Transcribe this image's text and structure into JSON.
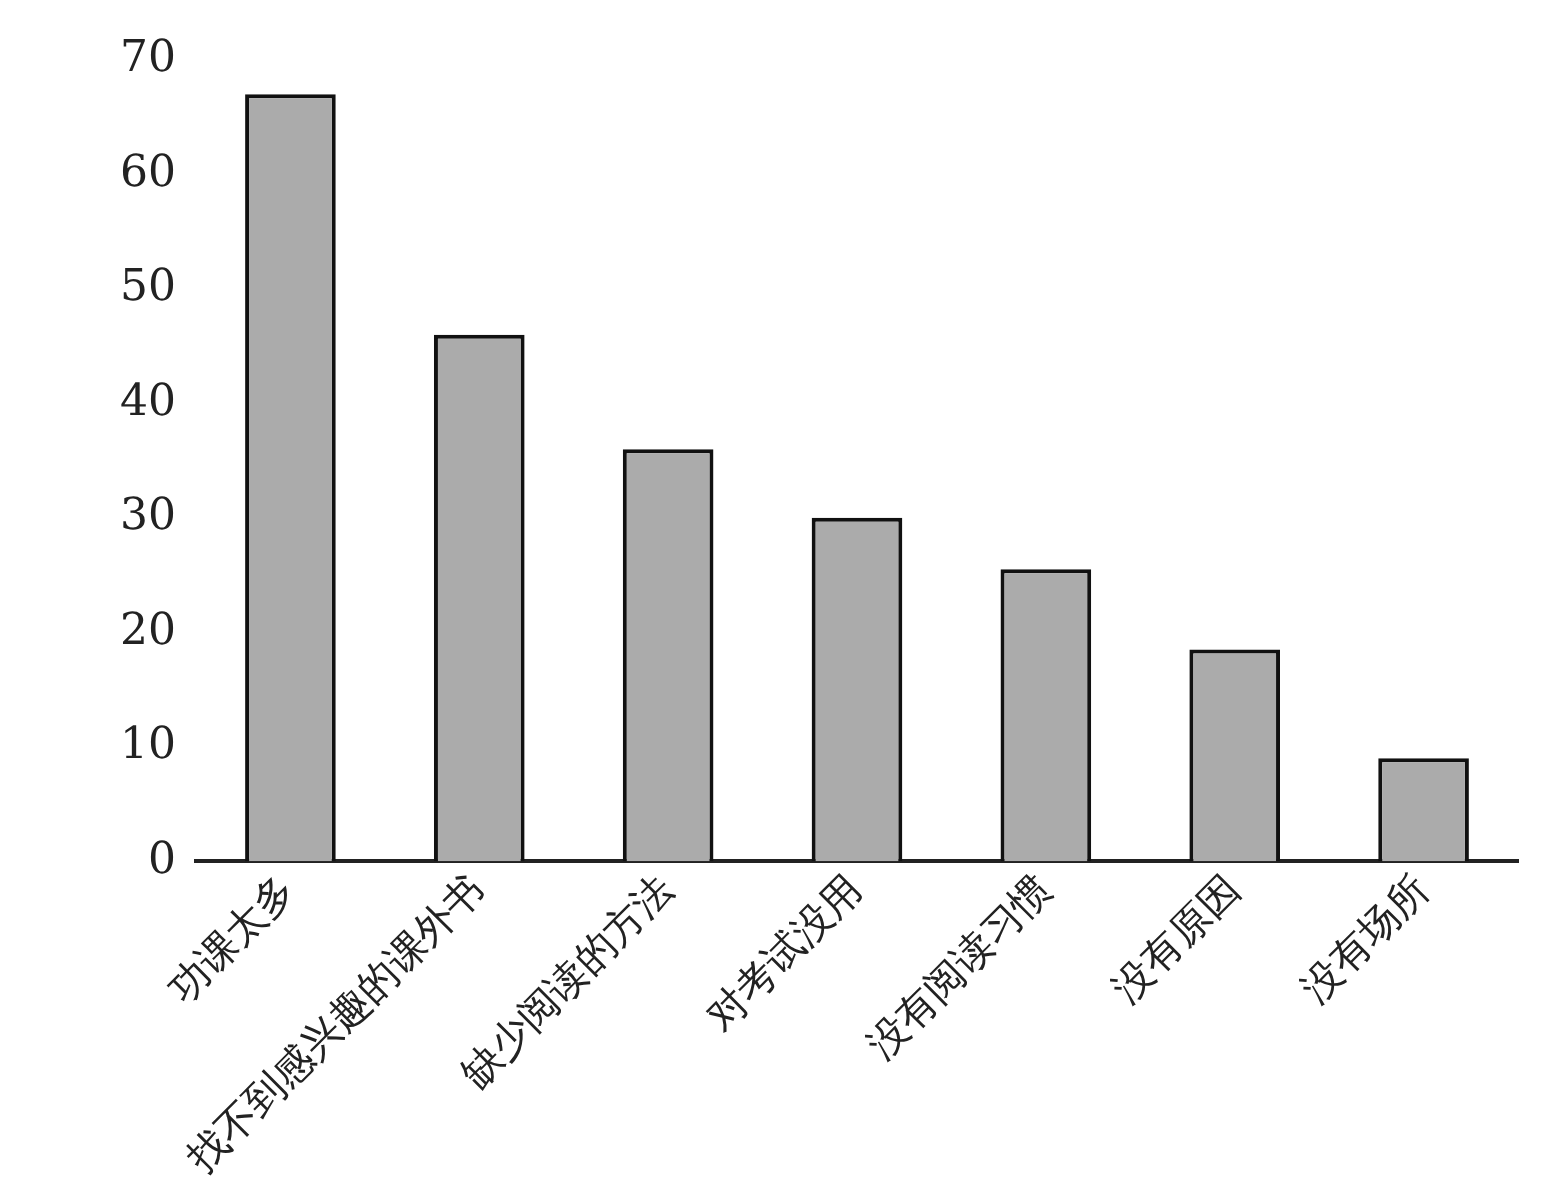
{
  "chart_data": {
    "type": "bar",
    "categories": [
      "功课太多",
      "找不到感兴趣的课外书",
      "缺少阅读的方法",
      "对考试没用",
      "没有阅读习惯",
      "没有原因",
      "没有场所"
    ],
    "values": [
      67,
      46,
      36,
      30,
      25.5,
      18.5,
      9
    ],
    "color": "#ababab",
    "ylim": [
      0,
      70
    ],
    "yticks": [
      0,
      10,
      20,
      30,
      40,
      50,
      60,
      70
    ],
    "grid": false,
    "legend": false
  }
}
